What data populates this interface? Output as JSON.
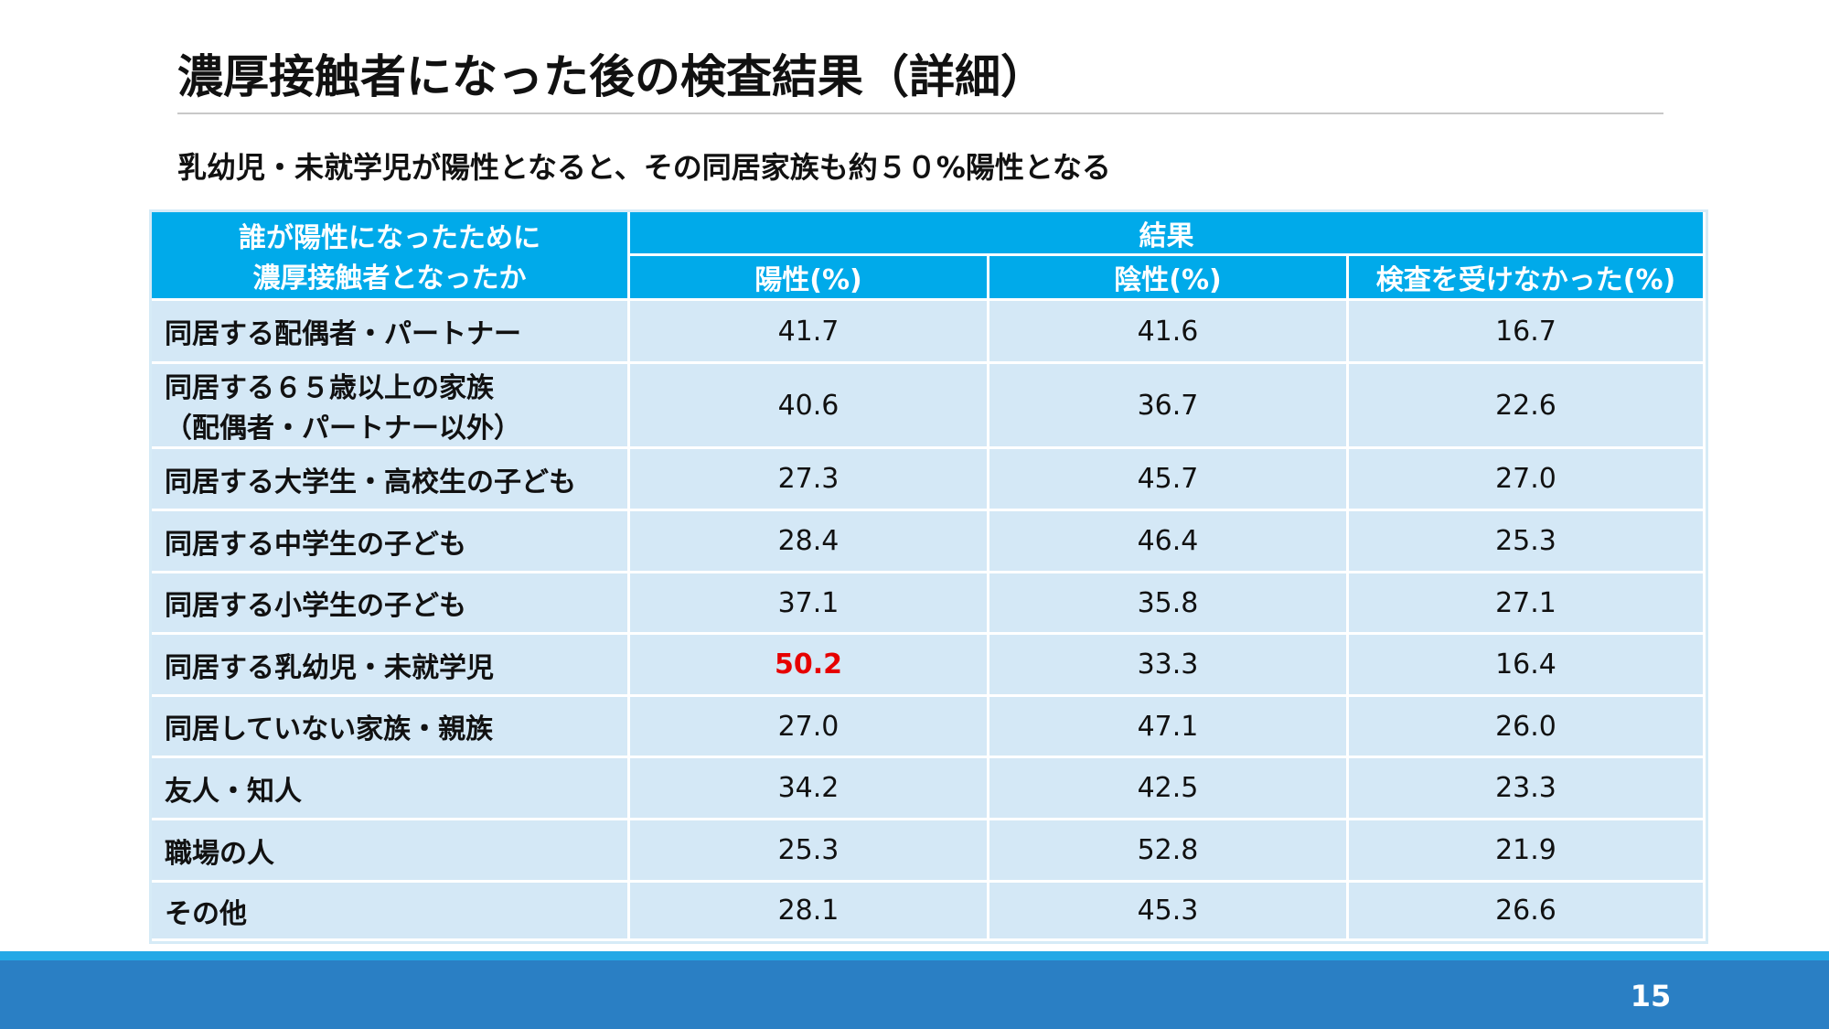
{
  "header": {
    "title": "濃厚接触者になった後の検査結果（詳細）",
    "subtitle": "乳幼児・未就学児が陽性となると、その同居家族も約５０%陽性となる"
  },
  "table": {
    "corner": [
      "誰が陽性になったために",
      "濃厚接触者となったか"
    ],
    "group": "結果",
    "columns": [
      "陽性(%)",
      "陰性(%)",
      "検査を受けなかった(%)"
    ],
    "rows": [
      {
        "label": [
          "同居する配偶者・パートナー"
        ],
        "values": [
          "41.7",
          "41.6",
          "16.7"
        ]
      },
      {
        "label": [
          "同居する６５歳以上の家族",
          "（配偶者・パートナー以外）"
        ],
        "values": [
          "40.6",
          "36.7",
          "22.6"
        ]
      },
      {
        "label": [
          "同居する大学生・高校生の子ども"
        ],
        "values": [
          "27.3",
          "45.7",
          "27.0"
        ]
      },
      {
        "label": [
          "同居する中学生の子ども"
        ],
        "values": [
          "28.4",
          "46.4",
          "25.3"
        ]
      },
      {
        "label": [
          "同居する小学生の子ども"
        ],
        "values": [
          "37.1",
          "35.8",
          "27.1"
        ]
      },
      {
        "label": [
          "同居する乳幼児・未就学児"
        ],
        "values": [
          "50.2",
          "33.3",
          "16.4"
        ]
      },
      {
        "label": [
          "同居していない家族・親族"
        ],
        "values": [
          "27.0",
          "47.1",
          "26.0"
        ]
      },
      {
        "label": [
          "友人・知人"
        ],
        "values": [
          "34.2",
          "42.5",
          "23.3"
        ]
      },
      {
        "label": [
          "職場の人"
        ],
        "values": [
          "25.3",
          "52.8",
          "21.9"
        ]
      },
      {
        "label": [
          "その他"
        ],
        "values": [
          "28.1",
          "45.3",
          "26.6"
        ]
      }
    ],
    "highlight": {
      "row": 5,
      "col": 0,
      "color": "#e60000"
    }
  },
  "footer": {
    "page": "15"
  }
}
